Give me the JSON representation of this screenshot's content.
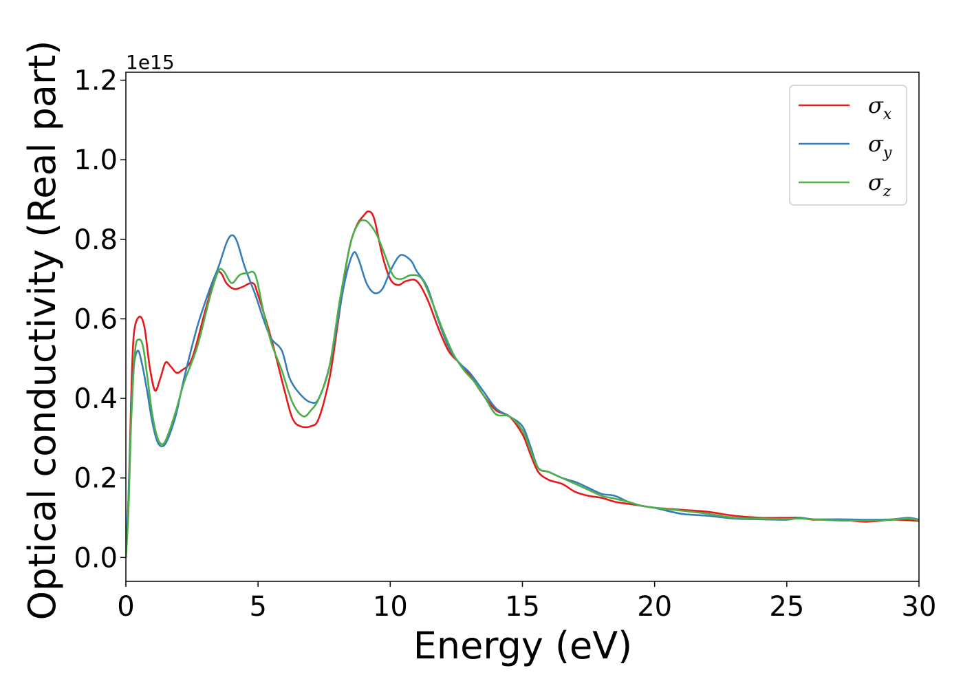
{
  "chart_data": {
    "type": "line",
    "xlabel": "Energy (eV)",
    "ylabel": "Optical conductivity (Real part)",
    "y_offset_label": "1e15",
    "xlim": [
      0,
      30
    ],
    "ylim": [
      -0.06,
      1.22
    ],
    "x_ticks": [
      0,
      5,
      10,
      15,
      20,
      25,
      30
    ],
    "x_tick_labels": [
      "0",
      "5",
      "10",
      "15",
      "20",
      "25",
      "30"
    ],
    "y_ticks": [
      0.0,
      0.2,
      0.4,
      0.6,
      0.8,
      1.0,
      1.2
    ],
    "y_tick_labels": [
      "0.0",
      "0.2",
      "0.4",
      "0.6",
      "0.8",
      "1.0",
      "1.2"
    ],
    "grid": false,
    "legend_position": "top-right",
    "series": [
      {
        "name": "σx",
        "symbol": "σ",
        "subscript": "x",
        "color": "#e41a1c",
        "points": [
          [
            0,
            0
          ],
          [
            0.1,
            0.15
          ],
          [
            0.2,
            0.4
          ],
          [
            0.3,
            0.56
          ],
          [
            0.5,
            0.605
          ],
          [
            0.7,
            0.58
          ],
          [
            0.9,
            0.48
          ],
          [
            1.1,
            0.42
          ],
          [
            1.3,
            0.45
          ],
          [
            1.5,
            0.49
          ],
          [
            1.7,
            0.48
          ],
          [
            1.9,
            0.465
          ],
          [
            2.1,
            0.47
          ],
          [
            2.5,
            0.5
          ],
          [
            3.0,
            0.62
          ],
          [
            3.4,
            0.71
          ],
          [
            3.6,
            0.715
          ],
          [
            3.8,
            0.69
          ],
          [
            4.1,
            0.675
          ],
          [
            4.4,
            0.68
          ],
          [
            4.8,
            0.69
          ],
          [
            5.0,
            0.66
          ],
          [
            5.5,
            0.55
          ],
          [
            6.0,
            0.42
          ],
          [
            6.3,
            0.35
          ],
          [
            6.6,
            0.33
          ],
          [
            7.0,
            0.33
          ],
          [
            7.3,
            0.35
          ],
          [
            7.7,
            0.45
          ],
          [
            8.0,
            0.58
          ],
          [
            8.4,
            0.76
          ],
          [
            8.7,
            0.83
          ],
          [
            9.0,
            0.86
          ],
          [
            9.2,
            0.87
          ],
          [
            9.4,
            0.85
          ],
          [
            9.7,
            0.76
          ],
          [
            10.0,
            0.7
          ],
          [
            10.3,
            0.685
          ],
          [
            10.6,
            0.695
          ],
          [
            11.0,
            0.695
          ],
          [
            11.4,
            0.65
          ],
          [
            11.8,
            0.58
          ],
          [
            12.2,
            0.52
          ],
          [
            12.6,
            0.49
          ],
          [
            13.0,
            0.46
          ],
          [
            13.5,
            0.41
          ],
          [
            14.0,
            0.37
          ],
          [
            14.5,
            0.355
          ],
          [
            15.0,
            0.31
          ],
          [
            15.3,
            0.26
          ],
          [
            15.6,
            0.215
          ],
          [
            16.0,
            0.195
          ],
          [
            16.5,
            0.185
          ],
          [
            17.0,
            0.165
          ],
          [
            17.5,
            0.155
          ],
          [
            18.0,
            0.15
          ],
          [
            18.5,
            0.14
          ],
          [
            19.0,
            0.135
          ],
          [
            19.5,
            0.13
          ],
          [
            20.0,
            0.125
          ],
          [
            21.0,
            0.12
          ],
          [
            22.0,
            0.115
          ],
          [
            23.0,
            0.105
          ],
          [
            24.0,
            0.1
          ],
          [
            25.0,
            0.1
          ],
          [
            25.5,
            0.1
          ],
          [
            26.0,
            0.095
          ],
          [
            27.0,
            0.095
          ],
          [
            28.0,
            0.09
          ],
          [
            29.0,
            0.095
          ],
          [
            30.0,
            0.092
          ]
        ]
      },
      {
        "name": "σy",
        "symbol": "σ",
        "subscript": "y",
        "color": "#377eb8",
        "points": [
          [
            0,
            0
          ],
          [
            0.1,
            0.15
          ],
          [
            0.2,
            0.36
          ],
          [
            0.3,
            0.48
          ],
          [
            0.45,
            0.52
          ],
          [
            0.6,
            0.49
          ],
          [
            0.8,
            0.42
          ],
          [
            1.0,
            0.34
          ],
          [
            1.2,
            0.29
          ],
          [
            1.4,
            0.28
          ],
          [
            1.6,
            0.3
          ],
          [
            1.9,
            0.36
          ],
          [
            2.2,
            0.45
          ],
          [
            2.7,
            0.58
          ],
          [
            3.2,
            0.68
          ],
          [
            3.5,
            0.73
          ],
          [
            3.8,
            0.79
          ],
          [
            4.0,
            0.81
          ],
          [
            4.2,
            0.795
          ],
          [
            4.5,
            0.73
          ],
          [
            4.9,
            0.66
          ],
          [
            5.2,
            0.6
          ],
          [
            5.5,
            0.55
          ],
          [
            5.9,
            0.52
          ],
          [
            6.2,
            0.45
          ],
          [
            6.6,
            0.41
          ],
          [
            7.0,
            0.39
          ],
          [
            7.3,
            0.4
          ],
          [
            7.7,
            0.48
          ],
          [
            8.0,
            0.59
          ],
          [
            8.3,
            0.7
          ],
          [
            8.6,
            0.765
          ],
          [
            8.8,
            0.75
          ],
          [
            9.1,
            0.69
          ],
          [
            9.4,
            0.665
          ],
          [
            9.7,
            0.675
          ],
          [
            10.0,
            0.72
          ],
          [
            10.3,
            0.755
          ],
          [
            10.5,
            0.76
          ],
          [
            10.8,
            0.745
          ],
          [
            11.0,
            0.72
          ],
          [
            11.4,
            0.68
          ],
          [
            11.8,
            0.6
          ],
          [
            12.2,
            0.53
          ],
          [
            12.6,
            0.49
          ],
          [
            13.0,
            0.465
          ],
          [
            13.5,
            0.42
          ],
          [
            14.0,
            0.375
          ],
          [
            14.5,
            0.355
          ],
          [
            15.0,
            0.33
          ],
          [
            15.3,
            0.28
          ],
          [
            15.6,
            0.225
          ],
          [
            16.0,
            0.215
          ],
          [
            16.5,
            0.2
          ],
          [
            17.0,
            0.19
          ],
          [
            17.5,
            0.175
          ],
          [
            18.0,
            0.16
          ],
          [
            18.5,
            0.155
          ],
          [
            19.0,
            0.14
          ],
          [
            19.5,
            0.13
          ],
          [
            20.0,
            0.125
          ],
          [
            21.0,
            0.11
          ],
          [
            22.0,
            0.105
          ],
          [
            23.0,
            0.098
          ],
          [
            24.0,
            0.096
          ],
          [
            25.0,
            0.095
          ],
          [
            25.5,
            0.1
          ],
          [
            26.0,
            0.096
          ],
          [
            27.0,
            0.096
          ],
          [
            28.0,
            0.095
          ],
          [
            29.0,
            0.096
          ],
          [
            29.6,
            0.1
          ],
          [
            30.0,
            0.095
          ]
        ]
      },
      {
        "name": "σz",
        "symbol": "σ",
        "subscript": "z",
        "color": "#4daf4a",
        "points": [
          [
            0,
            0
          ],
          [
            0.1,
            0.12
          ],
          [
            0.2,
            0.34
          ],
          [
            0.35,
            0.52
          ],
          [
            0.5,
            0.548
          ],
          [
            0.65,
            0.53
          ],
          [
            0.8,
            0.46
          ],
          [
            1.0,
            0.36
          ],
          [
            1.2,
            0.3
          ],
          [
            1.4,
            0.285
          ],
          [
            1.6,
            0.31
          ],
          [
            1.9,
            0.37
          ],
          [
            2.2,
            0.44
          ],
          [
            2.7,
            0.53
          ],
          [
            3.2,
            0.66
          ],
          [
            3.5,
            0.72
          ],
          [
            3.7,
            0.72
          ],
          [
            4.0,
            0.69
          ],
          [
            4.3,
            0.71
          ],
          [
            4.6,
            0.715
          ],
          [
            4.9,
            0.71
          ],
          [
            5.2,
            0.62
          ],
          [
            5.5,
            0.54
          ],
          [
            5.9,
            0.47
          ],
          [
            6.3,
            0.39
          ],
          [
            6.7,
            0.355
          ],
          [
            7.0,
            0.37
          ],
          [
            7.3,
            0.4
          ],
          [
            7.7,
            0.48
          ],
          [
            8.1,
            0.65
          ],
          [
            8.5,
            0.79
          ],
          [
            8.8,
            0.84
          ],
          [
            9.0,
            0.848
          ],
          [
            9.2,
            0.84
          ],
          [
            9.5,
            0.81
          ],
          [
            9.8,
            0.76
          ],
          [
            10.1,
            0.71
          ],
          [
            10.4,
            0.7
          ],
          [
            10.8,
            0.71
          ],
          [
            11.2,
            0.7
          ],
          [
            11.6,
            0.64
          ],
          [
            12.0,
            0.57
          ],
          [
            12.4,
            0.51
          ],
          [
            12.8,
            0.47
          ],
          [
            13.2,
            0.44
          ],
          [
            13.6,
            0.4
          ],
          [
            14.0,
            0.36
          ],
          [
            14.5,
            0.355
          ],
          [
            15.0,
            0.32
          ],
          [
            15.3,
            0.27
          ],
          [
            15.6,
            0.225
          ],
          [
            16.0,
            0.215
          ],
          [
            16.5,
            0.2
          ],
          [
            17.0,
            0.185
          ],
          [
            17.5,
            0.17
          ],
          [
            18.0,
            0.155
          ],
          [
            18.5,
            0.148
          ],
          [
            19.0,
            0.14
          ],
          [
            19.5,
            0.13
          ],
          [
            20.0,
            0.125
          ],
          [
            21.0,
            0.118
          ],
          [
            22.0,
            0.11
          ],
          [
            23.0,
            0.1
          ],
          [
            24.0,
            0.098
          ],
          [
            25.0,
            0.097
          ],
          [
            25.5,
            0.098
          ],
          [
            26.0,
            0.096
          ],
          [
            27.0,
            0.093
          ],
          [
            28.0,
            0.093
          ],
          [
            29.0,
            0.095
          ],
          [
            29.6,
            0.098
          ],
          [
            30.0,
            0.094
          ]
        ]
      }
    ]
  }
}
